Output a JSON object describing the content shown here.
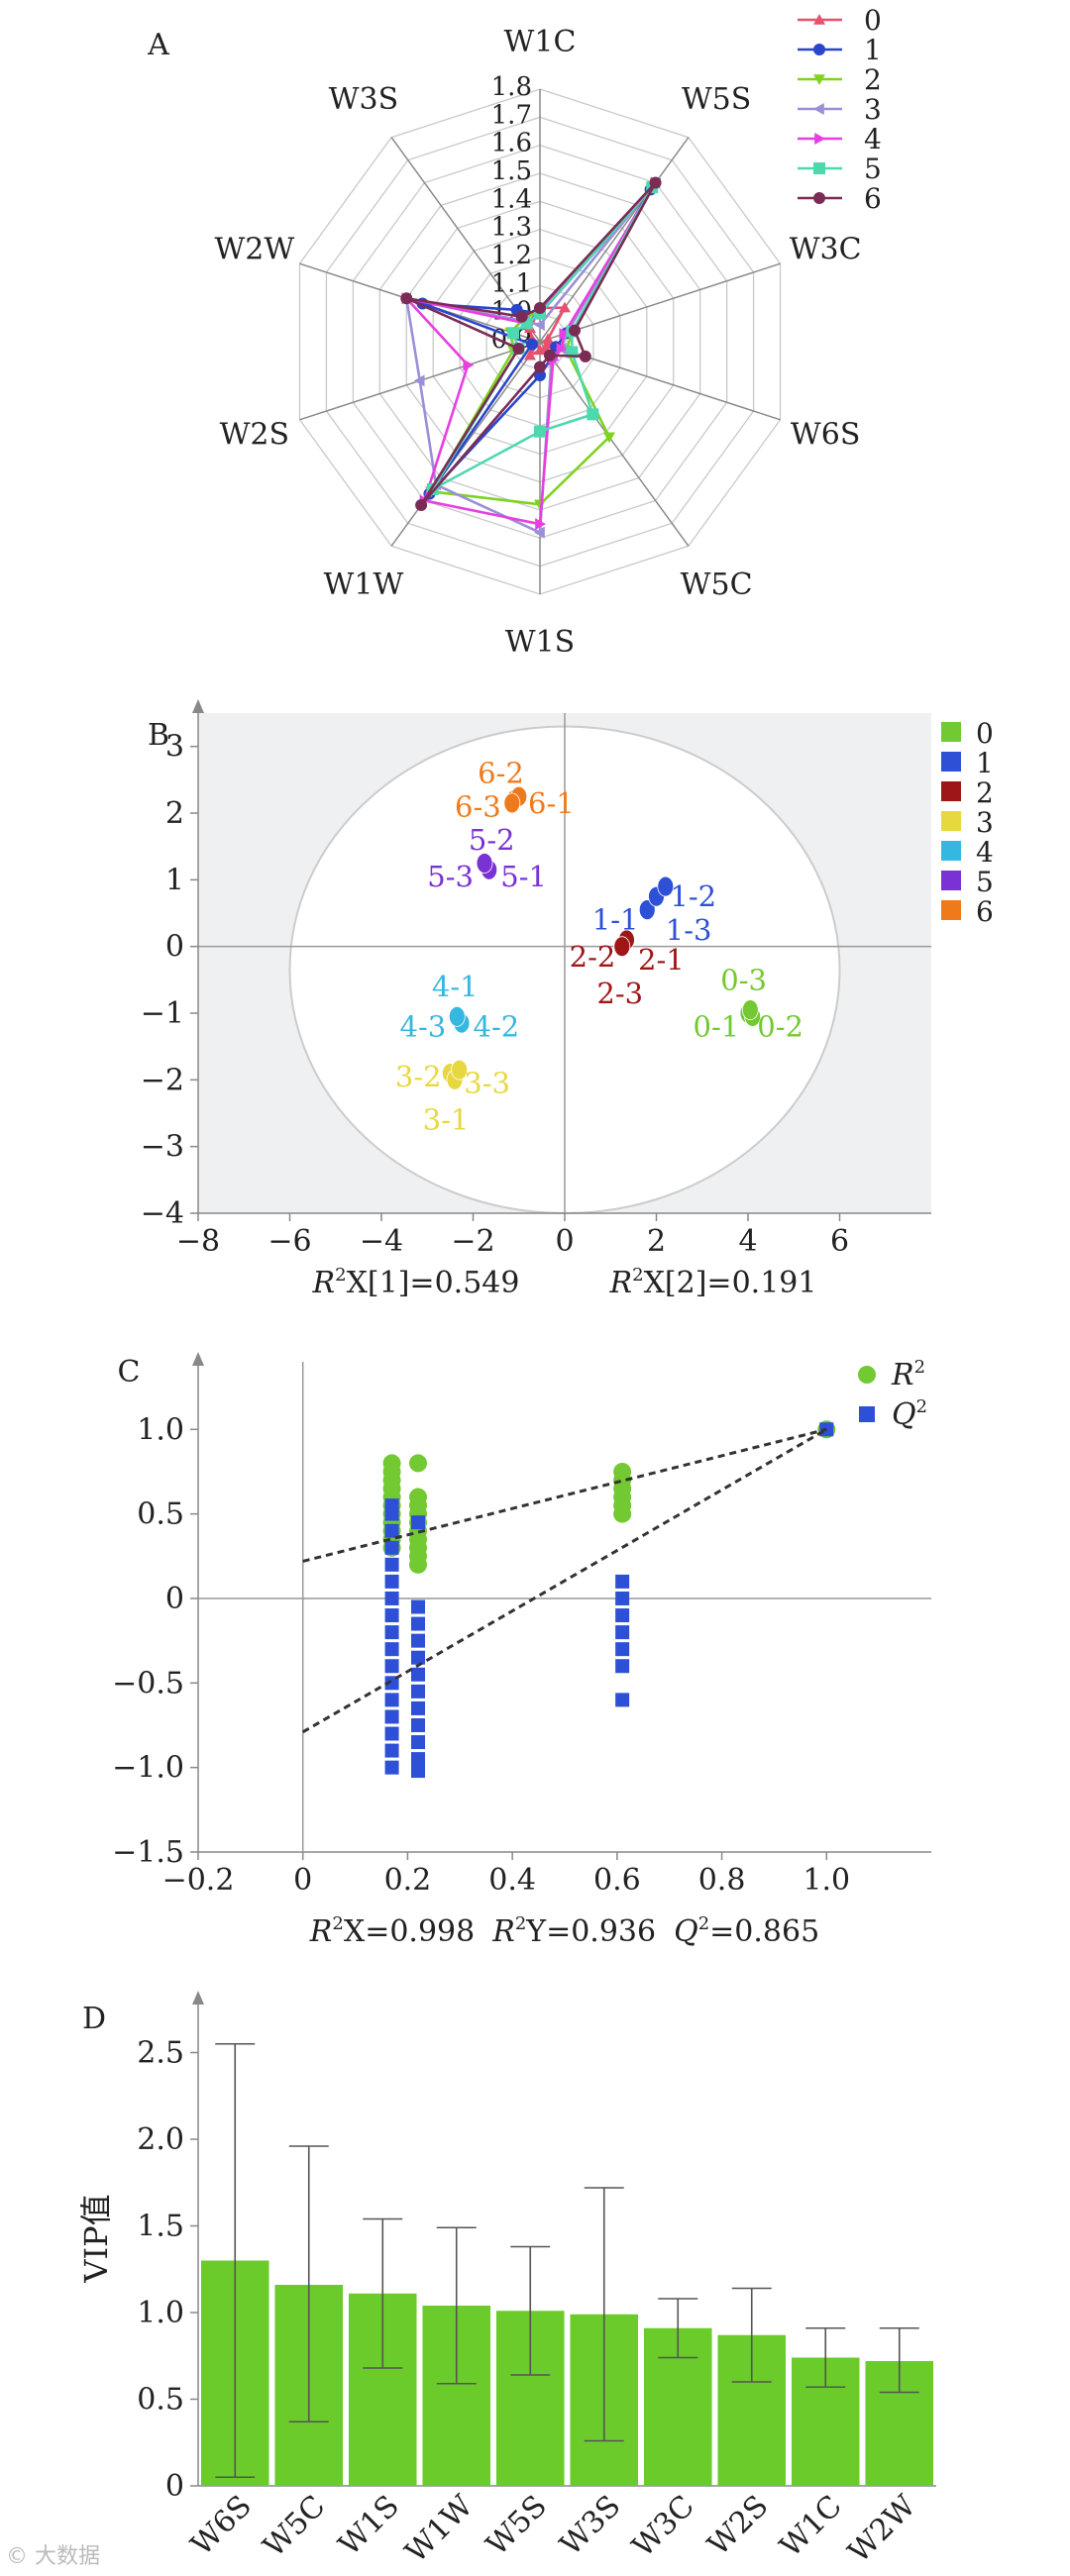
{
  "watermark": "© 大数据",
  "chart_data": [
    {
      "panel": "A",
      "type": "radar",
      "axes": [
        "W1C",
        "W5S",
        "W3C",
        "W6S",
        "W5C",
        "W1S",
        "W1W",
        "W2S",
        "W2W",
        "W3S"
      ],
      "rings": [
        "0.9",
        "1.0",
        "1.1",
        "1.2",
        "1.3",
        "1.4",
        "1.5",
        "1.6",
        "1.7",
        "1.8"
      ],
      "range": [
        0.9,
        1.8
      ],
      "series": [
        {
          "name": "0",
          "values": [
            1.02,
            1.05,
            0.93,
            0.93,
            0.93,
            0.93,
            0.96,
            0.92,
            0.93,
            0.96
          ],
          "color": "#e8506e",
          "marker": "tri-up"
        },
        {
          "name": "1",
          "values": [
            1.0,
            1.57,
            1.0,
            0.96,
            0.97,
            1.02,
            1.57,
            0.93,
            1.34,
            1.04
          ],
          "color": "#2a46cc",
          "marker": "circle"
        },
        {
          "name": "2",
          "values": [
            1.01,
            1.6,
            1.02,
            1.0,
            1.32,
            1.48,
            1.56,
            1.0,
            1.01,
            1.0
          ],
          "color": "#7ed321",
          "marker": "tri-down"
        },
        {
          "name": "3",
          "values": [
            0.96,
            1.6,
            1.0,
            0.98,
            0.97,
            1.58,
            1.53,
            1.35,
            1.4,
            0.99
          ],
          "color": "#9a8fd8",
          "marker": "tri-left"
        },
        {
          "name": "4",
          "values": [
            1.01,
            1.6,
            0.99,
            0.98,
            0.98,
            1.55,
            1.6,
            1.17,
            1.4,
            0.98
          ],
          "color": "#e83fe0",
          "marker": "tri-right"
        },
        {
          "name": "5",
          "values": [
            1.0,
            1.58,
            1.02,
            1.02,
            1.22,
            1.22,
            1.55,
            0.98,
            1.0,
            0.98
          ],
          "color": "#4ed8b0",
          "marker": "square"
        },
        {
          "name": "6",
          "values": [
            1.02,
            1.6,
            1.03,
            1.07,
            0.96,
            0.99,
            1.62,
            0.98,
            1.4,
            1.01
          ],
          "color": "#7a2c54",
          "marker": "circle"
        }
      ]
    },
    {
      "panel": "B",
      "type": "scatter",
      "xlim": [
        -8,
        8
      ],
      "ylim": [
        -4,
        3.5
      ],
      "xticks": [
        "−8",
        "−6",
        "−4",
        "−2",
        "0",
        "2",
        "4",
        "6"
      ],
      "yticks": [
        "−4",
        "−3",
        "−2",
        "−1",
        "0",
        "1",
        "2",
        "3"
      ],
      "xlabel_main": "X[1]=0.549",
      "ylabel_main": "X[2]=0.191",
      "label_prefix": "R",
      "label_sup": "2",
      "legend": [
        {
          "name": "0",
          "color": "#72c931"
        },
        {
          "name": "1",
          "color": "#2d50d6"
        },
        {
          "name": "2",
          "color": "#9e1616"
        },
        {
          "name": "3",
          "color": "#e8d840"
        },
        {
          "name": "4",
          "color": "#35b8e0"
        },
        {
          "name": "5",
          "color": "#7a32d4"
        },
        {
          "name": "6",
          "color": "#ef7a1c"
        }
      ],
      "groups": [
        {
          "name": "0",
          "color": "#72c931",
          "points": [
            [
              4.0,
              -1.0
            ],
            [
              4.1,
              -1.05
            ],
            [
              4.05,
              -0.95
            ]
          ],
          "labels": [
            {
              "t": "0-3",
              "x": 3.4,
              "y": -0.5
            },
            {
              "t": "0-1",
              "x": 2.8,
              "y": -1.2
            },
            {
              "t": "0-2",
              "x": 4.2,
              "y": -1.2
            }
          ]
        },
        {
          "name": "1",
          "color": "#2d50d6",
          "points": [
            [
              1.8,
              0.55
            ],
            [
              2.0,
              0.75
            ],
            [
              2.2,
              0.9
            ]
          ],
          "labels": [
            {
              "t": "1-1",
              "x": 0.6,
              "y": 0.4
            },
            {
              "t": "1-2",
              "x": 2.3,
              "y": 0.75
            },
            {
              "t": "1-3",
              "x": 2.2,
              "y": 0.25
            }
          ]
        },
        {
          "name": "2",
          "color": "#9e1616",
          "points": [
            [
              1.3,
              0.05
            ],
            [
              1.35,
              0.1
            ],
            [
              1.25,
              0.0
            ]
          ],
          "labels": [
            {
              "t": "2-2",
              "x": 0.1,
              "y": -0.15
            },
            {
              "t": "2-1",
              "x": 1.6,
              "y": -0.2
            },
            {
              "t": "2-3",
              "x": 0.7,
              "y": -0.7
            }
          ]
        },
        {
          "name": "3",
          "color": "#e8d840",
          "points": [
            [
              -2.5,
              -1.9
            ],
            [
              -2.4,
              -2.0
            ],
            [
              -2.3,
              -1.85
            ]
          ],
          "labels": [
            {
              "t": "3-2",
              "x": -3.7,
              "y": -1.95
            },
            {
              "t": "3-3",
              "x": -2.2,
              "y": -2.05
            },
            {
              "t": "3-1",
              "x": -3.1,
              "y": -2.6
            }
          ]
        },
        {
          "name": "4",
          "color": "#35b8e0",
          "points": [
            [
              -2.3,
              -1.1
            ],
            [
              -2.25,
              -1.15
            ],
            [
              -2.35,
              -1.05
            ]
          ],
          "labels": [
            {
              "t": "4-1",
              "x": -2.9,
              "y": -0.6
            },
            {
              "t": "4-3",
              "x": -3.6,
              "y": -1.2
            },
            {
              "t": "4-2",
              "x": -2.0,
              "y": -1.2
            }
          ]
        },
        {
          "name": "5",
          "color": "#7a32d4",
          "points": [
            [
              -1.7,
              1.2
            ],
            [
              -1.65,
              1.15
            ],
            [
              -1.75,
              1.25
            ]
          ],
          "labels": [
            {
              "t": "5-2",
              "x": -2.1,
              "y": 1.6
            },
            {
              "t": "5-3",
              "x": -3.0,
              "y": 1.05
            },
            {
              "t": "5-1",
              "x": -1.4,
              "y": 1.05
            }
          ]
        },
        {
          "name": "6",
          "color": "#ef7a1c",
          "points": [
            [
              -1.1,
              2.2
            ],
            [
              -1.0,
              2.25
            ],
            [
              -1.15,
              2.15
            ]
          ],
          "labels": [
            {
              "t": "6-2",
              "x": -1.9,
              "y": 2.6
            },
            {
              "t": "6-3",
              "x": -2.4,
              "y": 2.1
            },
            {
              "t": "6-1",
              "x": -0.8,
              "y": 2.15
            }
          ]
        }
      ]
    },
    {
      "panel": "C",
      "type": "scatter",
      "xlim": [
        -0.2,
        1.2
      ],
      "ylim": [
        -1.5,
        1.4
      ],
      "xticks": [
        "−0.2",
        "0",
        "0.2",
        "0.4",
        "0.6",
        "0.8",
        "1.0"
      ],
      "yticks": [
        "−1.5",
        "−1.0",
        "−0.5",
        "0",
        "0.5",
        "1.0"
      ],
      "series": [
        {
          "name": "R",
          "sup": "2",
          "color": "#72c931",
          "marker": "circle",
          "points": [
            [
              0.17,
              0.3
            ],
            [
              0.17,
              0.35
            ],
            [
              0.17,
              0.4
            ],
            [
              0.17,
              0.45
            ],
            [
              0.17,
              0.5
            ],
            [
              0.17,
              0.55
            ],
            [
              0.17,
              0.6
            ],
            [
              0.17,
              0.65
            ],
            [
              0.17,
              0.7
            ],
            [
              0.17,
              0.75
            ],
            [
              0.17,
              0.8
            ],
            [
              0.22,
              0.2
            ],
            [
              0.22,
              0.25
            ],
            [
              0.22,
              0.3
            ],
            [
              0.22,
              0.35
            ],
            [
              0.22,
              0.4
            ],
            [
              0.22,
              0.45
            ],
            [
              0.22,
              0.5
            ],
            [
              0.22,
              0.55
            ],
            [
              0.22,
              0.6
            ],
            [
              0.22,
              0.8
            ],
            [
              0.61,
              0.5
            ],
            [
              0.61,
              0.55
            ],
            [
              0.61,
              0.6
            ],
            [
              0.61,
              0.65
            ],
            [
              0.61,
              0.7
            ],
            [
              0.61,
              0.75
            ],
            [
              1.0,
              1.0
            ]
          ]
        },
        {
          "name": "Q",
          "sup": "2",
          "color": "#2d50d6",
          "marker": "square",
          "points": [
            [
              0.17,
              0.55
            ],
            [
              0.17,
              0.5
            ],
            [
              0.17,
              0.4
            ],
            [
              0.17,
              0.3
            ],
            [
              0.17,
              0.2
            ],
            [
              0.17,
              0.1
            ],
            [
              0.17,
              0.0
            ],
            [
              0.17,
              -0.1
            ],
            [
              0.17,
              -0.2
            ],
            [
              0.17,
              -0.3
            ],
            [
              0.17,
              -0.4
            ],
            [
              0.17,
              -0.5
            ],
            [
              0.17,
              -0.6
            ],
            [
              0.17,
              -0.7
            ],
            [
              0.17,
              -0.8
            ],
            [
              0.17,
              -0.9
            ],
            [
              0.17,
              -1.0
            ],
            [
              0.22,
              0.45
            ],
            [
              0.22,
              -0.05
            ],
            [
              0.22,
              -0.15
            ],
            [
              0.22,
              -0.25
            ],
            [
              0.22,
              -0.35
            ],
            [
              0.22,
              -0.45
            ],
            [
              0.22,
              -0.55
            ],
            [
              0.22,
              -0.65
            ],
            [
              0.22,
              -0.75
            ],
            [
              0.22,
              -0.85
            ],
            [
              0.22,
              -0.95
            ],
            [
              0.22,
              -1.02
            ],
            [
              0.61,
              0.1
            ],
            [
              0.61,
              0.0
            ],
            [
              0.61,
              -0.1
            ],
            [
              0.61,
              -0.2
            ],
            [
              0.61,
              -0.3
            ],
            [
              0.61,
              -0.4
            ],
            [
              0.61,
              -0.6
            ],
            [
              1.0,
              1.0
            ]
          ]
        }
      ],
      "lines": [
        {
          "from": [
            0.0,
            0.22
          ],
          "to": [
            1.0,
            1.0
          ]
        },
        {
          "from": [
            0.0,
            -0.79
          ],
          "to": [
            1.0,
            1.0
          ]
        }
      ],
      "footer": [
        {
          "lbl": "X",
          "val": "=0.998"
        },
        {
          "lbl": "Y",
          "val": "=0.936"
        },
        {
          "lbl": "Q",
          "val": "=0.865"
        }
      ]
    },
    {
      "panel": "D",
      "type": "bar",
      "ylabel": "VIP值",
      "ylim": [
        0,
        2.8
      ],
      "yticks": [
        "0",
        "0.5",
        "1.0",
        "1.5",
        "2.0",
        "2.5"
      ],
      "categories": [
        "W6S",
        "W5C",
        "W1S",
        "W1W",
        "W5S",
        "W3S",
        "W3C",
        "W2S",
        "W1C",
        "W2W"
      ],
      "values": [
        1.3,
        1.16,
        1.11,
        1.04,
        1.01,
        0.99,
        0.91,
        0.87,
        0.74,
        0.72
      ],
      "error_low": [
        0.05,
        0.37,
        0.68,
        0.59,
        0.64,
        0.26,
        0.74,
        0.6,
        0.57,
        0.54
      ],
      "error_high": [
        2.55,
        1.96,
        1.54,
        1.49,
        1.38,
        1.72,
        1.08,
        1.14,
        0.91,
        0.91
      ],
      "bar_color": "#6acb2b"
    }
  ]
}
